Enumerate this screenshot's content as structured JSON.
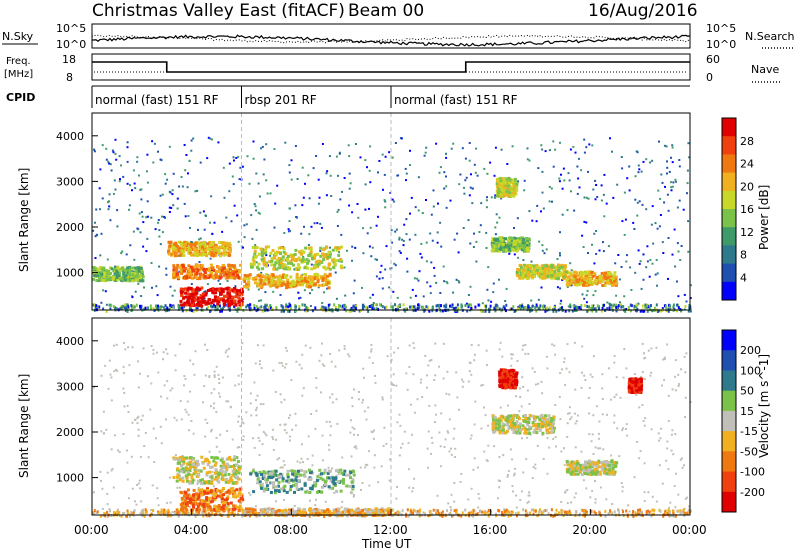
{
  "header": {
    "title": "Christmas Valley East (fitACF)",
    "beam": "Beam 00",
    "date": "16/Aug/2016"
  },
  "status_panels": {
    "nsky_label": "N.Sky",
    "nsky_ticks": [
      "10^5",
      "10^0"
    ],
    "nsearch_label": "N.Search",
    "nsearch_ticks": [
      "10^5",
      "10^0"
    ],
    "freq_label_1": "Freq.",
    "freq_label_2": "[MHz]",
    "freq_ticks": [
      "18",
      "8"
    ],
    "nave_label": "Nave",
    "nave_ticks": [
      "60",
      "0"
    ],
    "cpid_label": "CPID",
    "cpid_segments": [
      {
        "label": "normal (fast) 151 RF",
        "start_h": 0,
        "end_h": 6
      },
      {
        "label": "rbsp 201 RF",
        "start_h": 6,
        "end_h": 12
      },
      {
        "label": "normal (fast) 151 RF",
        "start_h": 12,
        "end_h": 24
      }
    ],
    "freq_step_hours": [
      3,
      15
    ],
    "dotted_line": "dotted"
  },
  "axes": {
    "x_ticks": [
      "00:00",
      "04:00",
      "08:00",
      "12:00",
      "16:00",
      "20:00",
      "00:00"
    ],
    "x_label": "Time UT",
    "y_label": "Slant Range [km]",
    "y_ticks": [
      "4000",
      "3000",
      "2000",
      "1000"
    ],
    "x_range_h": [
      0,
      24
    ],
    "y_range_km": [
      180,
      4500
    ]
  },
  "chart_data": [
    {
      "type": "heatmap",
      "name": "power",
      "colorbar_label": "Power [dB]",
      "colorbar_ticks": [
        "28",
        "24",
        "20",
        "16",
        "12",
        "8",
        "4"
      ],
      "colors": [
        "#0000ff",
        "#1f4fb0",
        "#2e7a8c",
        "#3f9a6a",
        "#7ac24a",
        "#c8d828",
        "#f0b020",
        "#f07810",
        "#f04010",
        "#e00000"
      ],
      "range": [
        0,
        30
      ],
      "regions": [
        {
          "t": [
            3.2,
            5.9
          ],
          "r": [
            900,
            1200
          ],
          "level": 7
        },
        {
          "t": [
            3.5,
            6.0
          ],
          "r": [
            300,
            700
          ],
          "level": 9
        },
        {
          "t": [
            6.3,
            10.0
          ],
          "r": [
            1100,
            1600
          ],
          "level": 5
        },
        {
          "t": [
            6.0,
            9.5
          ],
          "r": [
            700,
            1000
          ],
          "level": 6
        },
        {
          "t": [
            3.0,
            5.5
          ],
          "r": [
            1400,
            1700
          ],
          "level": 6
        },
        {
          "t": [
            0.0,
            2.0
          ],
          "r": [
            850,
            1150
          ],
          "level": 4
        },
        {
          "t": [
            16.0,
            17.5
          ],
          "r": [
            1500,
            1800
          ],
          "level": 4
        },
        {
          "t": [
            19.0,
            21.0
          ],
          "r": [
            750,
            1050
          ],
          "level": 6
        },
        {
          "t": [
            17.0,
            19.0
          ],
          "r": [
            900,
            1200
          ],
          "level": 5
        },
        {
          "t": [
            16.2,
            17.0
          ],
          "r": [
            2700,
            3100
          ],
          "level": 5
        }
      ]
    },
    {
      "type": "heatmap",
      "name": "velocity",
      "colorbar_label": "Velocity [m s^-1]",
      "colorbar_ticks": [
        "200",
        "100",
        "50",
        "15",
        "-15",
        "-50",
        "-100",
        "-200"
      ],
      "colors": [
        "#e00000",
        "#f04010",
        "#f07810",
        "#f0b020",
        "#c0c0b8",
        "#7ac24a",
        "#2e7a8c",
        "#1f4fb0",
        "#0000ff"
      ],
      "range": [
        -250,
        250
      ],
      "regions": [
        {
          "t": [
            3.2,
            5.9
          ],
          "r": [
            900,
            1500
          ],
          "level": 4
        },
        {
          "t": [
            3.5,
            6.0
          ],
          "r": [
            300,
            800
          ],
          "level": 2
        },
        {
          "t": [
            6.3,
            10.5
          ],
          "r": [
            700,
            1200
          ],
          "level": 5
        },
        {
          "t": [
            6.0,
            12.0
          ],
          "r": [
            200,
            350
          ],
          "level": 3
        },
        {
          "t": [
            16.0,
            18.5
          ],
          "r": [
            2000,
            2400
          ],
          "level": 4
        },
        {
          "t": [
            19.0,
            21.0
          ],
          "r": [
            1100,
            1400
          ],
          "level": 4
        },
        {
          "t": [
            16.3,
            17.0
          ],
          "r": [
            3000,
            3400
          ],
          "level": 0
        },
        {
          "t": [
            21.5,
            22.0
          ],
          "r": [
            2900,
            3200
          ],
          "level": 0
        }
      ]
    }
  ]
}
